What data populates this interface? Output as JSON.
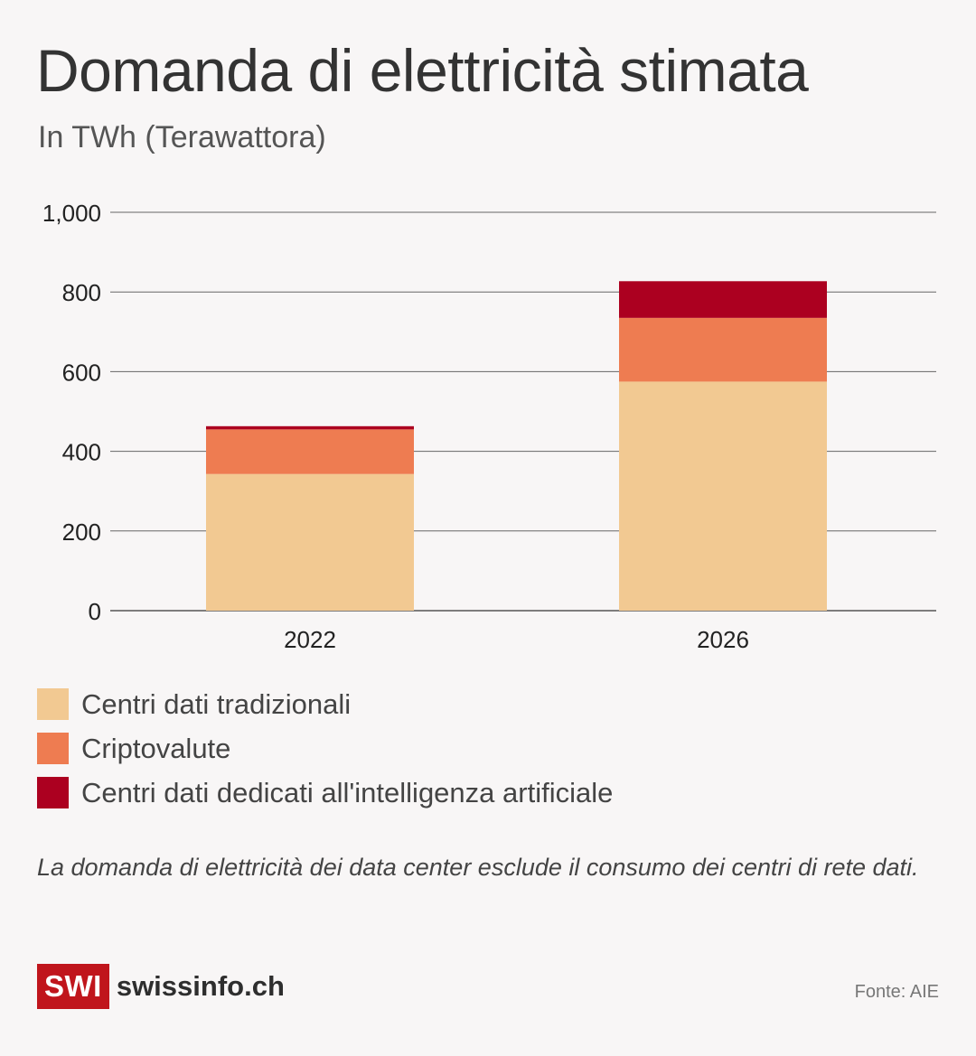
{
  "title": "Domanda di elettricità stimata",
  "subtitle": "In TWh (Terawattora)",
  "chart_data": {
    "type": "bar",
    "stacked": true,
    "categories": [
      "2022",
      "2026"
    ],
    "series": [
      {
        "name": "Centri dati tradizionali",
        "color": "#f2c992",
        "values": [
          343,
          575
        ]
      },
      {
        "name": "Criptovalute",
        "color": "#ee7c51",
        "values": [
          112,
          160
        ]
      },
      {
        "name": "Centri dati dedicati all'intelligenza artificiale",
        "color": "#ac0020",
        "values": [
          8,
          92
        ]
      }
    ],
    "yticks": [
      "0",
      "200",
      "400",
      "600",
      "800",
      "1,000"
    ],
    "ylim": [
      0,
      1000
    ],
    "grid": true,
    "legend": "bottom"
  },
  "note": "La domanda di elettricità dei data center esclude il consumo dei centri di rete dati.",
  "logo": {
    "mark": "SWI",
    "name": "swissinfo.ch"
  },
  "source": "Fonte: AIE"
}
